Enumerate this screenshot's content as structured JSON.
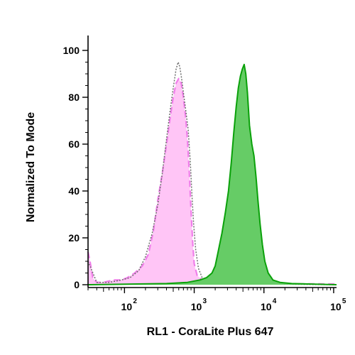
{
  "chart_data": {
    "type": "area",
    "xlabel": "RL1 - CoraLite Plus 647",
    "ylabel": "Normalized To Mode",
    "x_scale": "log",
    "xlim": [
      30,
      110000
    ],
    "ylim": [
      0,
      100
    ],
    "y_ticks": [
      0,
      20,
      40,
      60,
      80,
      100
    ],
    "x_ticks": [
      {
        "value": 100,
        "base": "10",
        "exp": "2"
      },
      {
        "value": 1000,
        "base": "10",
        "exp": "3"
      },
      {
        "value": 10000,
        "base": "10",
        "exp": "4"
      },
      {
        "value": 100000,
        "base": "10",
        "exp": "5"
      }
    ],
    "series": [
      {
        "style": "pink-dashed-filled",
        "fill": "#FFC2F5",
        "stroke": "#F07EEA",
        "points": [
          [
            30,
            14
          ],
          [
            32,
            10
          ],
          [
            35,
            3
          ],
          [
            40,
            1
          ],
          [
            50,
            1
          ],
          [
            70,
            2
          ],
          [
            90,
            2
          ],
          [
            110,
            3
          ],
          [
            140,
            5
          ],
          [
            180,
            8
          ],
          [
            220,
            13
          ],
          [
            260,
            23
          ],
          [
            300,
            36
          ],
          [
            350,
            48
          ],
          [
            400,
            60
          ],
          [
            450,
            71
          ],
          [
            500,
            80
          ],
          [
            550,
            86
          ],
          [
            600,
            88
          ],
          [
            650,
            86
          ],
          [
            700,
            80
          ],
          [
            750,
            72
          ],
          [
            800,
            62
          ],
          [
            850,
            48
          ],
          [
            900,
            32
          ],
          [
            950,
            18
          ],
          [
            1000,
            9
          ],
          [
            1100,
            4
          ],
          [
            1300,
            2
          ],
          [
            1600,
            1
          ],
          [
            3000,
            0.5
          ],
          [
            110000,
            0.3
          ]
        ]
      },
      {
        "style": "grey-dotted-outline",
        "stroke": "#6F6F6F",
        "points": [
          [
            30,
            10
          ],
          [
            40,
            1
          ],
          [
            60,
            1
          ],
          [
            90,
            2
          ],
          [
            120,
            3
          ],
          [
            160,
            6
          ],
          [
            200,
            12
          ],
          [
            250,
            22
          ],
          [
            300,
            34
          ],
          [
            350,
            48
          ],
          [
            400,
            62
          ],
          [
            450,
            74
          ],
          [
            500,
            84
          ],
          [
            550,
            92
          ],
          [
            590,
            95
          ],
          [
            620,
            93
          ],
          [
            660,
            88
          ],
          [
            700,
            82
          ],
          [
            760,
            74
          ],
          [
            820,
            66
          ],
          [
            880,
            52
          ],
          [
            930,
            38
          ],
          [
            980,
            26
          ],
          [
            1050,
            15
          ],
          [
            1150,
            7
          ],
          [
            1300,
            3
          ],
          [
            1500,
            1
          ],
          [
            1800,
            0.5
          ],
          [
            110000,
            0
          ]
        ]
      },
      {
        "style": "green-filled",
        "fill": "#66CC66",
        "stroke": "#0AA10A",
        "points": [
          [
            30,
            0
          ],
          [
            400,
            0.5
          ],
          [
            800,
            1
          ],
          [
            1200,
            2
          ],
          [
            1500,
            3
          ],
          [
            1800,
            5
          ],
          [
            2000,
            8
          ],
          [
            2200,
            14
          ],
          [
            2500,
            22
          ],
          [
            2800,
            31
          ],
          [
            3100,
            40
          ],
          [
            3400,
            52
          ],
          [
            3700,
            65
          ],
          [
            4000,
            76
          ],
          [
            4300,
            84
          ],
          [
            4600,
            89
          ],
          [
            4900,
            92
          ],
          [
            5200,
            94
          ],
          [
            5500,
            90
          ],
          [
            5800,
            82
          ],
          [
            6200,
            68
          ],
          [
            6700,
            60
          ],
          [
            7200,
            55
          ],
          [
            7700,
            46
          ],
          [
            8200,
            36
          ],
          [
            8800,
            26
          ],
          [
            9500,
            17
          ],
          [
            10300,
            10
          ],
          [
            11500,
            5
          ],
          [
            13500,
            2
          ],
          [
            17000,
            1
          ],
          [
            25000,
            0.5
          ],
          [
            110000,
            0
          ]
        ]
      }
    ]
  }
}
